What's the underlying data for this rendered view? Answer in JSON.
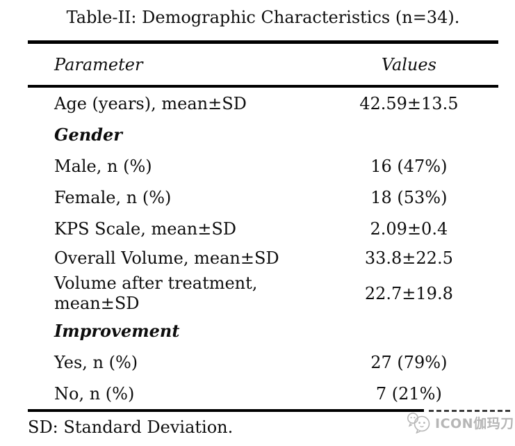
{
  "page": {
    "title": "Table-II: Demographic Characteristics (n=34)."
  },
  "table": {
    "header": {
      "parameter": "Parameter",
      "values": "Values"
    },
    "rows": [
      {
        "parameter": "Age (years), mean±SD",
        "value": "42.59±13.5",
        "style": "normal"
      },
      {
        "parameter": "Gender",
        "value": "",
        "style": "section"
      },
      {
        "parameter": "Male, n (%)",
        "value": "16 (47%)",
        "style": "normal"
      },
      {
        "parameter": "Female, n (%)",
        "value": "18 (53%)",
        "style": "normal"
      },
      {
        "parameter": "KPS Scale, mean±SD",
        "value": "2.09±0.4",
        "style": "normal"
      },
      {
        "parameter": "Overall Volume, mean±SD",
        "value": "33.8±22.5",
        "style": "normal"
      },
      {
        "parameter": "Volume after treatment, mean±SD",
        "value": "22.7±19.8",
        "style": "normal",
        "wrap": true
      },
      {
        "parameter": "Improvement",
        "value": "",
        "style": "section"
      },
      {
        "parameter": "Yes, n (%)",
        "value": "27 (79%)",
        "style": "normal"
      },
      {
        "parameter": "No, n (%)",
        "value": "7 (21%)",
        "style": "normal"
      }
    ]
  },
  "footnote": "SD: Standard Deviation.",
  "watermark": {
    "text": "ICON伽玛刀",
    "icon": "chat-bubbles-logo"
  },
  "colors": {
    "background": "#ffffff",
    "text": "#0d0d0d",
    "rule": "#000000",
    "dashes": "#3c3c3c",
    "watermark": "#b6b6b6"
  }
}
